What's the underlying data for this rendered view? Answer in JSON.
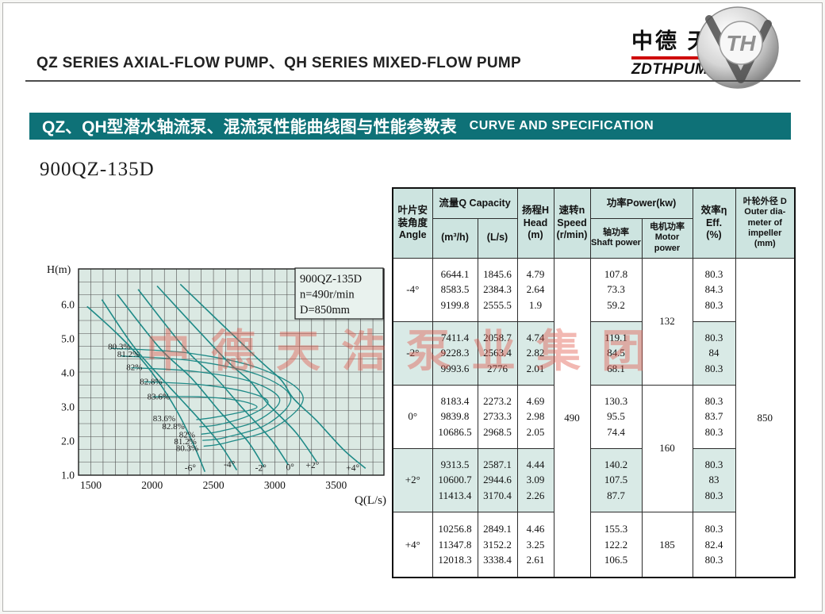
{
  "page": {
    "header_title": "QZ SERIES AXIAL-FLOW PUMP、QH SERIES MIXED-FLOW PUMP",
    "logo": {
      "brand_zh": "中德 天浩",
      "brand_en": "ZDTHPUMP",
      "emblem_text": "TH"
    },
    "banner": {
      "title_zh": "QZ、QH型潜水轴流泵、混流泵性能曲线图与性能参数表",
      "title_en": "CURVE AND SPECIFICATION",
      "bg_color": "#0e7177"
    },
    "model": "900QZ-135D",
    "watermark": "中德天浩泵业集团"
  },
  "chart_data": {
    "type": "line",
    "title": "900QZ-135D head-capacity curves with iso-efficiency contours",
    "xlabel": "Q(L/s)",
    "ylabel": "H(m)",
    "xlim": [
      1400,
      3890
    ],
    "ylim": [
      1.0,
      7.05
    ],
    "x_ticks": [
      1500,
      2000,
      2500,
      3000,
      3500
    ],
    "y_ticks": [
      1.0,
      2.0,
      3.0,
      4.0,
      5.0,
      6.0
    ],
    "grid": true,
    "legend_position": "none",
    "info_box": [
      "900QZ-135D",
      "n=490r/min",
      "D=850mm"
    ],
    "plot_bg": "#dbe9e3",
    "grid_color": "#4f4f4f",
    "curve_color": "#1e8a87",
    "series": [
      {
        "name": "-6°",
        "points": [
          [
            1470,
            5.95
          ],
          [
            1700,
            5.2
          ],
          [
            1900,
            4.45
          ],
          [
            2080,
            3.6
          ],
          [
            2230,
            2.7
          ],
          [
            2350,
            1.8
          ],
          [
            2430,
            1.1
          ]
        ]
      },
      {
        "name": "-4°",
        "points": [
          [
            1590,
            6.15
          ],
          [
            1846,
            4.79
          ],
          [
            2100,
            3.75
          ],
          [
            2384,
            2.64
          ],
          [
            2556,
            1.9
          ],
          [
            2690,
            1.15
          ]
        ]
      },
      {
        "name": "-2°",
        "points": [
          [
            1716,
            6.3
          ],
          [
            2059,
            4.74
          ],
          [
            2320,
            3.85
          ],
          [
            2563,
            2.82
          ],
          [
            2776,
            2.01
          ],
          [
            2910,
            1.25
          ]
        ]
      },
      {
        "name": "0°",
        "points": [
          [
            1886,
            6.45
          ],
          [
            2273,
            4.69
          ],
          [
            2520,
            3.85
          ],
          [
            2733,
            2.98
          ],
          [
            2969,
            2.05
          ],
          [
            3110,
            1.3
          ]
        ]
      },
      {
        "name": "+2°",
        "points": [
          [
            2040,
            6.55
          ],
          [
            2587,
            4.44
          ],
          [
            2800,
            3.75
          ],
          [
            2945,
            3.09
          ],
          [
            3170,
            2.26
          ],
          [
            3340,
            1.4
          ]
        ]
      },
      {
        "name": "+4°",
        "points": [
          [
            2230,
            6.6
          ],
          [
            2849,
            4.46
          ],
          [
            3050,
            3.8
          ],
          [
            3152,
            3.25
          ],
          [
            3338,
            2.61
          ],
          [
            3560,
            1.75
          ],
          [
            3740,
            1.2
          ]
        ]
      }
    ],
    "efficiency_contours": [
      {
        "name": "80.3%",
        "points": [
          [
            1660,
            4.72
          ],
          [
            2300,
            4.58
          ],
          [
            2900,
            4.1
          ],
          [
            3230,
            3.3
          ],
          [
            3000,
            2.4
          ],
          [
            2600,
            1.95
          ],
          [
            2420,
            1.85
          ]
        ]
      },
      {
        "name": "81.2%",
        "points": [
          [
            1740,
            4.5
          ],
          [
            2320,
            4.36
          ],
          [
            2860,
            3.95
          ],
          [
            3130,
            3.28
          ],
          [
            2940,
            2.5
          ],
          [
            2590,
            2.1
          ],
          [
            2410,
            2.02
          ]
        ]
      },
      {
        "name": "82%",
        "points": [
          [
            1830,
            4.15
          ],
          [
            2330,
            4.05
          ],
          [
            2800,
            3.75
          ],
          [
            3040,
            3.22
          ],
          [
            2860,
            2.6
          ],
          [
            2570,
            2.3
          ],
          [
            2400,
            2.2
          ]
        ]
      },
      {
        "name": "82.8%",
        "points": [
          [
            1935,
            3.74
          ],
          [
            2380,
            3.66
          ],
          [
            2760,
            3.45
          ],
          [
            2945,
            3.15
          ],
          [
            2790,
            2.75
          ],
          [
            2540,
            2.48
          ],
          [
            2385,
            2.42
          ]
        ]
      },
      {
        "name": "83.6%",
        "points": [
          [
            2005,
            3.3
          ],
          [
            2380,
            3.3
          ],
          [
            2690,
            3.2
          ],
          [
            2855,
            3.0
          ],
          [
            2700,
            2.83
          ],
          [
            2480,
            2.68
          ],
          [
            2360,
            2.63
          ]
        ]
      }
    ],
    "efficiency_labels_upper": [
      {
        "label": "80.3%",
        "x": 1640,
        "y": 4.78
      },
      {
        "label": "81.2%",
        "x": 1715,
        "y": 4.56
      },
      {
        "label": "82%",
        "x": 1790,
        "y": 4.18
      },
      {
        "label": "82.8%",
        "x": 1900,
        "y": 3.76
      },
      {
        "label": "83.6%",
        "x": 1960,
        "y": 3.32
      }
    ],
    "efficiency_labels_lower": [
      {
        "label": "83.6%",
        "x": 2190,
        "y": 2.68
      },
      {
        "label": "82.8%",
        "x": 2265,
        "y": 2.44
      },
      {
        "label": "82%",
        "x": 2350,
        "y": 2.2
      },
      {
        "label": "81.2%",
        "x": 2362,
        "y": 2.0
      },
      {
        "label": "80.3%",
        "x": 2378,
        "y": 1.8
      }
    ],
    "angle_labels": [
      {
        "label": "-6°",
        "x": 2311,
        "y": 1.22
      },
      {
        "label": "-4°",
        "x": 2630,
        "y": 1.33
      },
      {
        "label": "-2°",
        "x": 2886,
        "y": 1.22
      },
      {
        "label": "0°",
        "x": 3125,
        "y": 1.24
      },
      {
        "label": "+2°",
        "x": 3307,
        "y": 1.3
      },
      {
        "label": "+4°",
        "x": 3636,
        "y": 1.22
      }
    ]
  },
  "table": {
    "header": {
      "angle": "叶片安\n装角度\nAngle",
      "capacity": "流量Q Capacity",
      "m3h": "(m³/h)",
      "ls": "(L/s)",
      "head": "扬程H\nHead\n(m)",
      "speed": "速转n\nSpeed\n(r/min)",
      "power": "功率Power(kw)",
      "shaft": "轴功率\nShaft power",
      "motor": "电机功率\nMotor power",
      "eff": "效率η\nEff.\n(%)",
      "diameter": "叶轮外径 D\nOuter dia-\nmeter of\nimpeller\n(mm)"
    },
    "rows": [
      {
        "angle": "-4°",
        "m3h": "6644.1\n8583.5\n9199.8",
        "ls": "1845.6\n2384.3\n2555.5",
        "head": "4.79\n2.64\n1.9",
        "shaft": "107.8\n73.3\n59.2",
        "eff": "80.3\n84.3\n80.3"
      },
      {
        "angle": "-2°",
        "m3h": "7411.4\n9228.3\n9993.6",
        "ls": "2058.7\n2563.4\n2776",
        "head": "4.74\n2.82\n2.01",
        "shaft": "119.1\n84.5\n68.1",
        "eff": "80.3\n84\n80.3"
      },
      {
        "angle": "0°",
        "m3h": "8183.4\n9839.8\n10686.5",
        "ls": "2273.2\n2733.3\n2968.5",
        "head": "4.69\n2.98\n2.05",
        "shaft": "130.3\n95.5\n74.4",
        "eff": "80.3\n83.7\n80.3"
      },
      {
        "angle": "+2°",
        "m3h": "9313.5\n10600.7\n11413.4",
        "ls": "2587.1\n2944.6\n3170.4",
        "head": "4.44\n3.09\n2.26",
        "shaft": "140.2\n107.5\n87.7",
        "eff": "80.3\n83\n80.3"
      },
      {
        "angle": "+4°",
        "m3h": "10256.8\n11347.8\n12018.3",
        "ls": "2849.1\n3152.2\n3338.4",
        "head": "4.46\n3.25\n2.61",
        "shaft": "155.3\n122.2\n106.5",
        "eff": "80.3\n82.4\n80.3"
      }
    ],
    "speed": "490",
    "motor_powers": [
      "132",
      "160",
      "185"
    ],
    "outer_diameter": "850"
  }
}
